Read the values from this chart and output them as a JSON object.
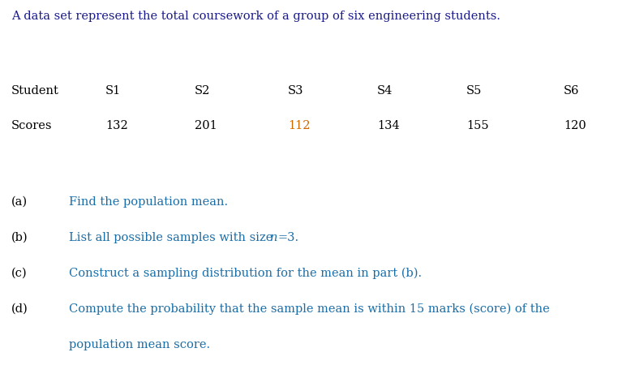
{
  "background_color": "#ffffff",
  "intro_text": "A data set represent the total coursework of a group of six engineering students.",
  "intro_color": "#1a1a8c",
  "intro_fontsize": 10.5,
  "table_header": [
    "Student",
    "S1",
    "S2",
    "S3",
    "S4",
    "S5",
    "S6"
  ],
  "table_scores_label": "Scores",
  "table_scores": [
    "132",
    "201",
    "112",
    "134",
    "155",
    "120"
  ],
  "table_header_color": "#000000",
  "table_scores_color": "#000000",
  "score_highlight_color": "#cc6600",
  "score_highlight_indices": [
    2
  ],
  "table_fontsize": 10.5,
  "questions": [
    {
      "label": "(a)",
      "text": "Find the population mean."
    },
    {
      "label": "(b)",
      "text": "List all possible samples with size $n$=3."
    },
    {
      "label": "(c)",
      "text": "Construct a sampling distribution for the mean in part (b)."
    },
    {
      "label": "(d)",
      "text_line1": "Compute the probability that the sample mean is within 15 marks (score) of the",
      "text_line2": "population mean score."
    }
  ],
  "question_label_color": "#000000",
  "question_text_color": "#1a6ea8",
  "question_fontsize": 10.5,
  "fig_width": 7.83,
  "fig_height": 4.82,
  "dpi": 100
}
